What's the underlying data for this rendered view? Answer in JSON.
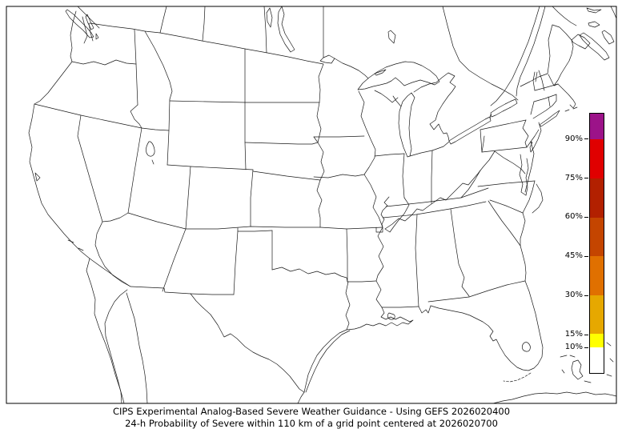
{
  "figure": {
    "background": "#ffffff",
    "frame_color": "#000000",
    "outline_color": "#1a1a1a"
  },
  "caption": {
    "line1": "CIPS Experimental Analog-Based Severe Weather Guidance - Using GEFS 2026020400",
    "line2": "24-h Probability of Severe within 110 km of a grid point centered at 2026020700"
  },
  "colorbar": {
    "unit": "%",
    "min": 0,
    "max": 100,
    "segments": [
      {
        "from": 90,
        "to": 100,
        "color": "#9c1389"
      },
      {
        "from": 75,
        "to": 90,
        "color": "#e00000"
      },
      {
        "from": 60,
        "to": 75,
        "color": "#b22000"
      },
      {
        "from": 45,
        "to": 60,
        "color": "#c44500"
      },
      {
        "from": 30,
        "to": 45,
        "color": "#e07000"
      },
      {
        "from": 15,
        "to": 30,
        "color": "#e6a800"
      },
      {
        "from": 10,
        "to": 15,
        "color": "#ffff00"
      },
      {
        "from": 0,
        "to": 10,
        "color": "#ffffff"
      }
    ],
    "ticks": [
      {
        "value": 90,
        "label": "90%"
      },
      {
        "value": 75,
        "label": "75%"
      },
      {
        "value": 60,
        "label": "60%"
      },
      {
        "value": 45,
        "label": "45%"
      },
      {
        "value": 30,
        "label": "30%"
      },
      {
        "value": 15,
        "label": "15%"
      },
      {
        "value": 10,
        "label": "10%"
      }
    ]
  },
  "map": {
    "region": "Continental United States with surrounding Canada, Mexico, Cuba and Bahamas outlines",
    "shaded_probability_areas": "none visible"
  }
}
